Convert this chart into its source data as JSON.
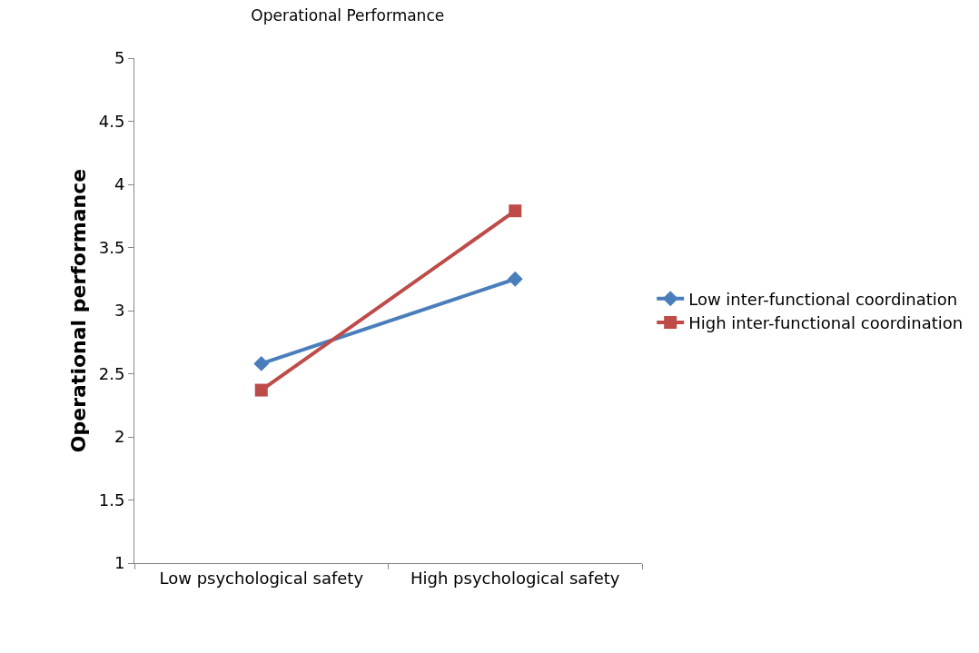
{
  "chart_data": {
    "type": "line",
    "title": "Operational Performance",
    "ylabel": "Operational performance",
    "categories": [
      "Low psychological safety",
      "High psychological safety"
    ],
    "series": [
      {
        "name": "Low inter-functional coordination",
        "color": "#4a7ebb",
        "marker": "diamond",
        "values": [
          2.58,
          3.25
        ]
      },
      {
        "name": "High inter-functional coordination",
        "color": "#be4b48",
        "marker": "square",
        "values": [
          2.37,
          3.79
        ]
      }
    ],
    "ylim": [
      1,
      5
    ],
    "yticks": [
      1,
      1.5,
      2,
      2.5,
      3,
      3.5,
      4,
      4.5,
      5
    ],
    "grid": false,
    "legend": "right"
  }
}
